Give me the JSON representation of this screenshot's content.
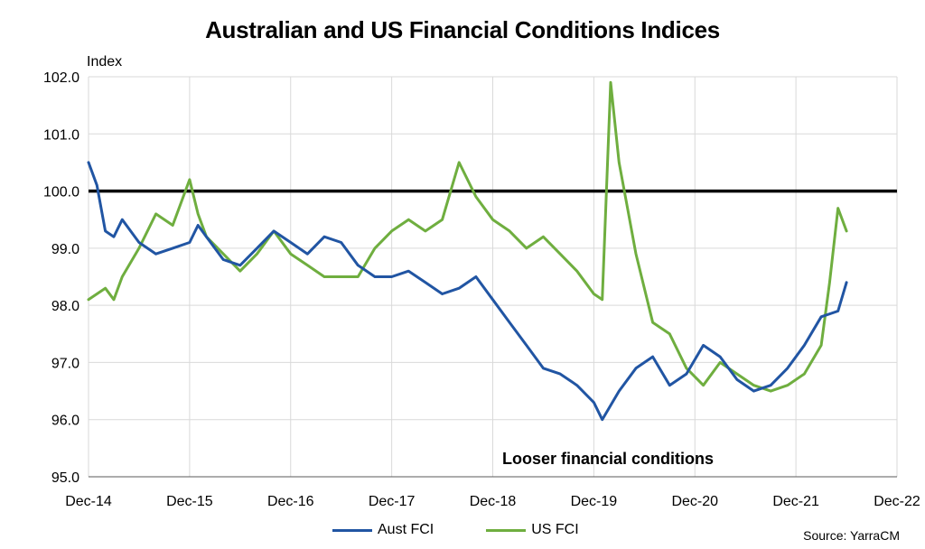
{
  "chart_data": {
    "type": "line",
    "title": "Australian and US Financial Conditions Indices",
    "ylabel": "Index",
    "ylim": [
      95.0,
      102.0
    ],
    "yticks": [
      "95.0",
      "96.0",
      "97.0",
      "98.0",
      "99.0",
      "100.0",
      "101.0",
      "102.0"
    ],
    "xlim": [
      "2014-12",
      "2022-12"
    ],
    "xticks": [
      "Dec-14",
      "Dec-15",
      "Dec-16",
      "Dec-17",
      "Dec-18",
      "Dec-19",
      "Dec-20",
      "Dec-21",
      "Dec-22"
    ],
    "grid": true,
    "reference_line": 100.0,
    "annotation": "Looser financial conditions",
    "source": "Source: YarraCM",
    "legend_position": "bottom",
    "series": [
      {
        "name": "Aust FCI",
        "color": "#2155a3",
        "x": [
          "2014-12",
          "2015-01",
          "2015-02",
          "2015-03",
          "2015-04",
          "2015-06",
          "2015-08",
          "2015-10",
          "2015-12",
          "2016-01",
          "2016-02",
          "2016-04",
          "2016-06",
          "2016-08",
          "2016-10",
          "2016-12",
          "2017-02",
          "2017-04",
          "2017-06",
          "2017-08",
          "2017-10",
          "2017-12",
          "2018-02",
          "2018-04",
          "2018-06",
          "2018-08",
          "2018-10",
          "2018-12",
          "2019-02",
          "2019-04",
          "2019-06",
          "2019-08",
          "2019-10",
          "2019-12",
          "2020-01",
          "2020-03",
          "2020-05",
          "2020-07",
          "2020-09",
          "2020-11",
          "2021-01",
          "2021-03",
          "2021-05",
          "2021-07",
          "2021-09",
          "2021-11",
          "2022-01",
          "2022-03",
          "2022-05",
          "2022-06"
        ],
        "values": [
          100.5,
          100.1,
          99.3,
          99.2,
          99.5,
          99.1,
          98.9,
          99.0,
          99.1,
          99.4,
          99.2,
          98.8,
          98.7,
          99.0,
          99.3,
          99.1,
          98.9,
          99.2,
          99.1,
          98.7,
          98.5,
          98.5,
          98.6,
          98.4,
          98.2,
          98.3,
          98.5,
          98.1,
          97.7,
          97.3,
          96.9,
          96.8,
          96.6,
          96.3,
          96.0,
          96.5,
          96.9,
          97.1,
          96.6,
          96.8,
          97.3,
          97.1,
          96.7,
          96.5,
          96.6,
          96.9,
          97.3,
          97.8,
          97.9,
          98.4
        ]
      },
      {
        "name": "US FCI",
        "color": "#6fae3f",
        "x": [
          "2014-12",
          "2015-01",
          "2015-02",
          "2015-03",
          "2015-04",
          "2015-06",
          "2015-08",
          "2015-10",
          "2015-12",
          "2016-01",
          "2016-02",
          "2016-04",
          "2016-06",
          "2016-08",
          "2016-10",
          "2016-12",
          "2017-02",
          "2017-04",
          "2017-06",
          "2017-08",
          "2017-10",
          "2017-12",
          "2018-02",
          "2018-04",
          "2018-06",
          "2018-08",
          "2018-10",
          "2018-12",
          "2019-02",
          "2019-04",
          "2019-06",
          "2019-08",
          "2019-10",
          "2019-12",
          "2020-01",
          "2020-02",
          "2020-03",
          "2020-04",
          "2020-05",
          "2020-07",
          "2020-09",
          "2020-11",
          "2021-01",
          "2021-03",
          "2021-05",
          "2021-07",
          "2021-09",
          "2021-11",
          "2022-01",
          "2022-03",
          "2022-04",
          "2022-05",
          "2022-06"
        ],
        "values": [
          98.1,
          98.2,
          98.3,
          98.1,
          98.5,
          99.0,
          99.6,
          99.4,
          100.2,
          99.6,
          99.2,
          98.9,
          98.6,
          98.9,
          99.3,
          98.9,
          98.7,
          98.5,
          98.5,
          98.5,
          99.0,
          99.3,
          99.5,
          99.3,
          99.5,
          100.5,
          99.9,
          99.5,
          99.3,
          99.0,
          99.2,
          98.9,
          98.6,
          98.2,
          98.1,
          101.9,
          100.5,
          99.7,
          98.9,
          97.7,
          97.5,
          96.9,
          96.6,
          97.0,
          96.8,
          96.6,
          96.5,
          96.6,
          96.8,
          97.3,
          98.4,
          99.7,
          99.3
        ]
      }
    ]
  }
}
